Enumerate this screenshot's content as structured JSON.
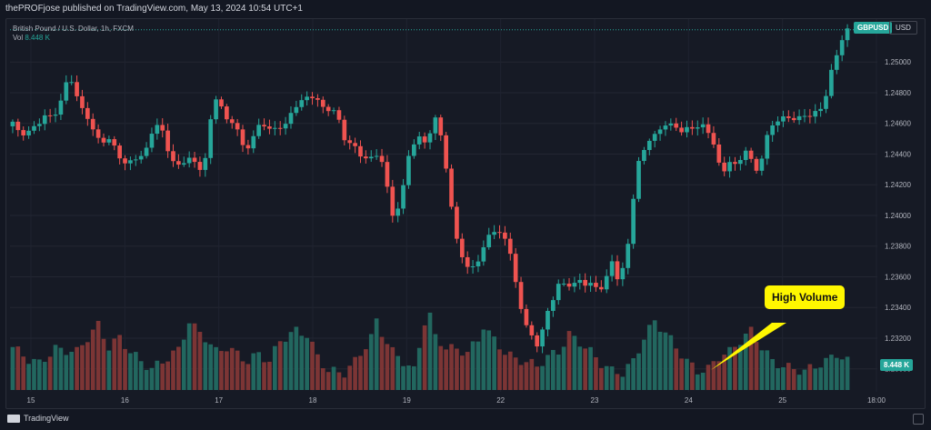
{
  "header": {
    "publisher": "thePROFjose published on TradingView.com, May 13, 2024 10:54 UTC+1"
  },
  "legend": {
    "symbol_desc": "British Pound / U.S. Dollar, 1h, FXCM",
    "vol_label": "Vol",
    "vol_value": "8.448 K"
  },
  "badges": {
    "symbol": "GBPUSD",
    "currency": "USD",
    "volume_last": "8.448 K"
  },
  "annotation": {
    "text": "High Volume"
  },
  "footer": {
    "brand": "TradingView"
  },
  "colors": {
    "up": "#26a69a",
    "down": "#ef5350",
    "volume_up": "#22675f",
    "volume_down": "#7c3535",
    "annotation": "#fff700"
  },
  "chart_data": {
    "type": "candlestick",
    "title": "British Pound / U.S. Dollar, 1h, FXCM",
    "symbol": "GBPUSD",
    "x_tick_labels": [
      "15",
      "16",
      "17",
      "18",
      "19",
      "22",
      "23",
      "24",
      "25",
      "18:00"
    ],
    "y_tick_labels": [
      "1.25000",
      "1.24800",
      "1.24600",
      "1.24400",
      "1.24200",
      "1.24000",
      "1.23800",
      "1.23600",
      "1.23400",
      "1.23200",
      "1.23000"
    ],
    "ylim": [
      1.2285,
      1.2528
    ],
    "price_path": [
      [
        0,
        1.2465
      ],
      [
        2,
        1.2452
      ],
      [
        5,
        1.2458
      ],
      [
        7,
        1.2467
      ],
      [
        8,
        1.2462
      ],
      [
        10,
        1.2478
      ],
      [
        11,
        1.2491
      ],
      [
        12,
        1.2486
      ],
      [
        13,
        1.2472
      ],
      [
        15,
        1.2462
      ],
      [
        16,
        1.2452
      ],
      [
        17,
        1.2448
      ],
      [
        19,
        1.245
      ],
      [
        20,
        1.2441
      ],
      [
        22,
        1.2432
      ],
      [
        23,
        1.2437
      ],
      [
        25,
        1.2439
      ],
      [
        26,
        1.2446
      ],
      [
        27,
        1.246
      ],
      [
        28,
        1.2458
      ],
      [
        29,
        1.2452
      ],
      [
        30,
        1.2437
      ],
      [
        31,
        1.2434
      ],
      [
        32,
        1.2431
      ],
      [
        33,
        1.2438
      ],
      [
        34,
        1.2437
      ],
      [
        35,
        1.2432
      ],
      [
        36,
        1.243
      ],
      [
        37,
        1.2442
      ],
      [
        38,
        1.2475
      ],
      [
        39,
        1.2478
      ],
      [
        40,
        1.2466
      ],
      [
        41,
        1.2459
      ],
      [
        42,
        1.2463
      ],
      [
        43,
        1.2451
      ],
      [
        44,
        1.2441
      ],
      [
        46,
        1.2454
      ],
      [
        47,
        1.2461
      ],
      [
        49,
        1.2455
      ],
      [
        50,
        1.2457
      ],
      [
        52,
        1.246
      ],
      [
        53,
        1.247
      ],
      [
        55,
        1.2476
      ],
      [
        57,
        1.2478
      ],
      [
        58,
        1.2473
      ],
      [
        59,
        1.2468
      ],
      [
        60,
        1.247
      ],
      [
        61,
        1.2467
      ],
      [
        62,
        1.2458
      ],
      [
        63,
        1.2445
      ],
      [
        64,
        1.2448
      ],
      [
        65,
        1.2442
      ],
      [
        66,
        1.2438
      ],
      [
        67,
        1.2436
      ],
      [
        69,
        1.2441
      ],
      [
        70,
        1.243
      ],
      [
        71,
        1.241
      ],
      [
        72,
        1.2395
      ],
      [
        73,
        1.241
      ],
      [
        74,
        1.2425
      ],
      [
        75,
        1.245
      ],
      [
        76,
        1.2443
      ],
      [
        77,
        1.2456
      ],
      [
        78,
        1.2444
      ],
      [
        79,
        1.2459
      ],
      [
        80,
        1.2466
      ],
      [
        81,
        1.2445
      ],
      [
        82,
        1.242
      ],
      [
        83,
        1.2395
      ],
      [
        84,
        1.238
      ],
      [
        85,
        1.2367
      ],
      [
        86,
        1.2365
      ],
      [
        87,
        1.237
      ],
      [
        88,
        1.2369
      ],
      [
        89,
        1.2385
      ],
      [
        90,
        1.2391
      ],
      [
        91,
        1.2387
      ],
      [
        92,
        1.2389
      ],
      [
        93,
        1.2384
      ],
      [
        94,
        1.2368
      ],
      [
        95,
        1.2348
      ],
      [
        96,
        1.2335
      ],
      [
        97,
        1.2323
      ],
      [
        98,
        1.232
      ],
      [
        99,
        1.2313
      ],
      [
        100,
        1.2333
      ],
      [
        101,
        1.234
      ],
      [
        102,
        1.235
      ],
      [
        103,
        1.2358
      ],
      [
        104,
        1.2353
      ],
      [
        105,
        1.2356
      ],
      [
        106,
        1.2355
      ],
      [
        107,
        1.2359
      ],
      [
        108,
        1.2353
      ],
      [
        109,
        1.2357
      ],
      [
        110,
        1.235
      ],
      [
        111,
        1.2355
      ],
      [
        112,
        1.2363
      ],
      [
        113,
        1.2374
      ],
      [
        114,
        1.235
      ],
      [
        115,
        1.2375
      ],
      [
        116,
        1.2385
      ],
      [
        117,
        1.243
      ],
      [
        118,
        1.2438
      ],
      [
        119,
        1.2445
      ],
      [
        120,
        1.2453
      ],
      [
        121,
        1.2452
      ],
      [
        122,
        1.2458
      ],
      [
        123,
        1.2461
      ],
      [
        124,
        1.2458
      ],
      [
        125,
        1.2456
      ],
      [
        126,
        1.2455
      ],
      [
        127,
        1.2458
      ],
      [
        128,
        1.2455
      ],
      [
        129,
        1.2461
      ],
      [
        130,
        1.2457
      ],
      [
        131,
        1.2451
      ],
      [
        132,
        1.2445
      ],
      [
        133,
        1.2426
      ],
      [
        134,
        1.243
      ],
      [
        135,
        1.244
      ],
      [
        136,
        1.2428
      ],
      [
        137,
        1.2441
      ],
      [
        138,
        1.2445
      ],
      [
        139,
        1.243
      ],
      [
        140,
        1.2428
      ],
      [
        141,
        1.2445
      ],
      [
        142,
        1.2456
      ],
      [
        144,
        1.2464
      ],
      [
        146,
        1.2463
      ],
      [
        148,
        1.2464
      ],
      [
        150,
        1.2466
      ],
      [
        151,
        1.2468
      ],
      [
        152,
        1.247
      ],
      [
        153,
        1.2485
      ],
      [
        154,
        1.25
      ],
      [
        155,
        1.2507
      ],
      [
        156,
        1.2521
      ]
    ],
    "volume_path": [
      [
        0,
        0.45
      ],
      [
        3,
        0.32
      ],
      [
        5,
        0.28
      ],
      [
        8,
        0.43
      ],
      [
        12,
        0.4
      ],
      [
        14,
        0.55
      ],
      [
        16,
        0.68
      ],
      [
        18,
        0.45
      ],
      [
        20,
        0.55
      ],
      [
        22,
        0.4
      ],
      [
        24,
        0.3
      ],
      [
        26,
        0.22
      ],
      [
        28,
        0.3
      ],
      [
        31,
        0.42
      ],
      [
        33,
        0.72
      ],
      [
        34,
        0.65
      ],
      [
        36,
        0.55
      ],
      [
        38,
        0.4
      ],
      [
        40,
        0.45
      ],
      [
        44,
        0.3
      ],
      [
        46,
        0.38
      ],
      [
        48,
        0.3
      ],
      [
        50,
        0.52
      ],
      [
        53,
        0.62
      ],
      [
        55,
        0.58
      ],
      [
        57,
        0.35
      ],
      [
        59,
        0.2
      ],
      [
        62,
        0.18
      ],
      [
        64,
        0.3
      ],
      [
        67,
        0.55
      ],
      [
        68,
        0.72
      ],
      [
        69,
        0.6
      ],
      [
        71,
        0.4
      ],
      [
        73,
        0.3
      ],
      [
        75,
        0.2
      ],
      [
        77,
        0.72
      ],
      [
        78,
        0.78
      ],
      [
        79,
        0.55
      ],
      [
        81,
        0.45
      ],
      [
        83,
        0.42
      ],
      [
        85,
        0.4
      ],
      [
        87,
        0.52
      ],
      [
        88,
        0.68
      ],
      [
        90,
        0.52
      ],
      [
        92,
        0.4
      ],
      [
        94,
        0.32
      ],
      [
        96,
        0.3
      ],
      [
        98,
        0.25
      ],
      [
        100,
        0.35
      ],
      [
        102,
        0.4
      ],
      [
        104,
        0.58
      ],
      [
        106,
        0.5
      ],
      [
        108,
        0.4
      ],
      [
        110,
        0.28
      ],
      [
        112,
        0.2
      ],
      [
        114,
        0.18
      ],
      [
        116,
        0.3
      ],
      [
        118,
        0.55
      ],
      [
        120,
        0.72
      ],
      [
        122,
        0.6
      ],
      [
        124,
        0.45
      ],
      [
        126,
        0.3
      ],
      [
        128,
        0.2
      ],
      [
        130,
        0.22
      ],
      [
        132,
        0.35
      ],
      [
        134,
        0.4
      ],
      [
        136,
        0.52
      ],
      [
        138,
        0.62
      ],
      [
        140,
        0.45
      ],
      [
        142,
        0.3
      ],
      [
        144,
        0.25
      ],
      [
        146,
        0.22
      ],
      [
        148,
        0.2
      ],
      [
        150,
        0.25
      ],
      [
        152,
        0.3
      ],
      [
        154,
        0.38
      ],
      [
        156,
        0.3
      ]
    ],
    "bar_count": 157,
    "last_price_line": 1.2521,
    "grid": true,
    "legend_position": "top-left"
  }
}
